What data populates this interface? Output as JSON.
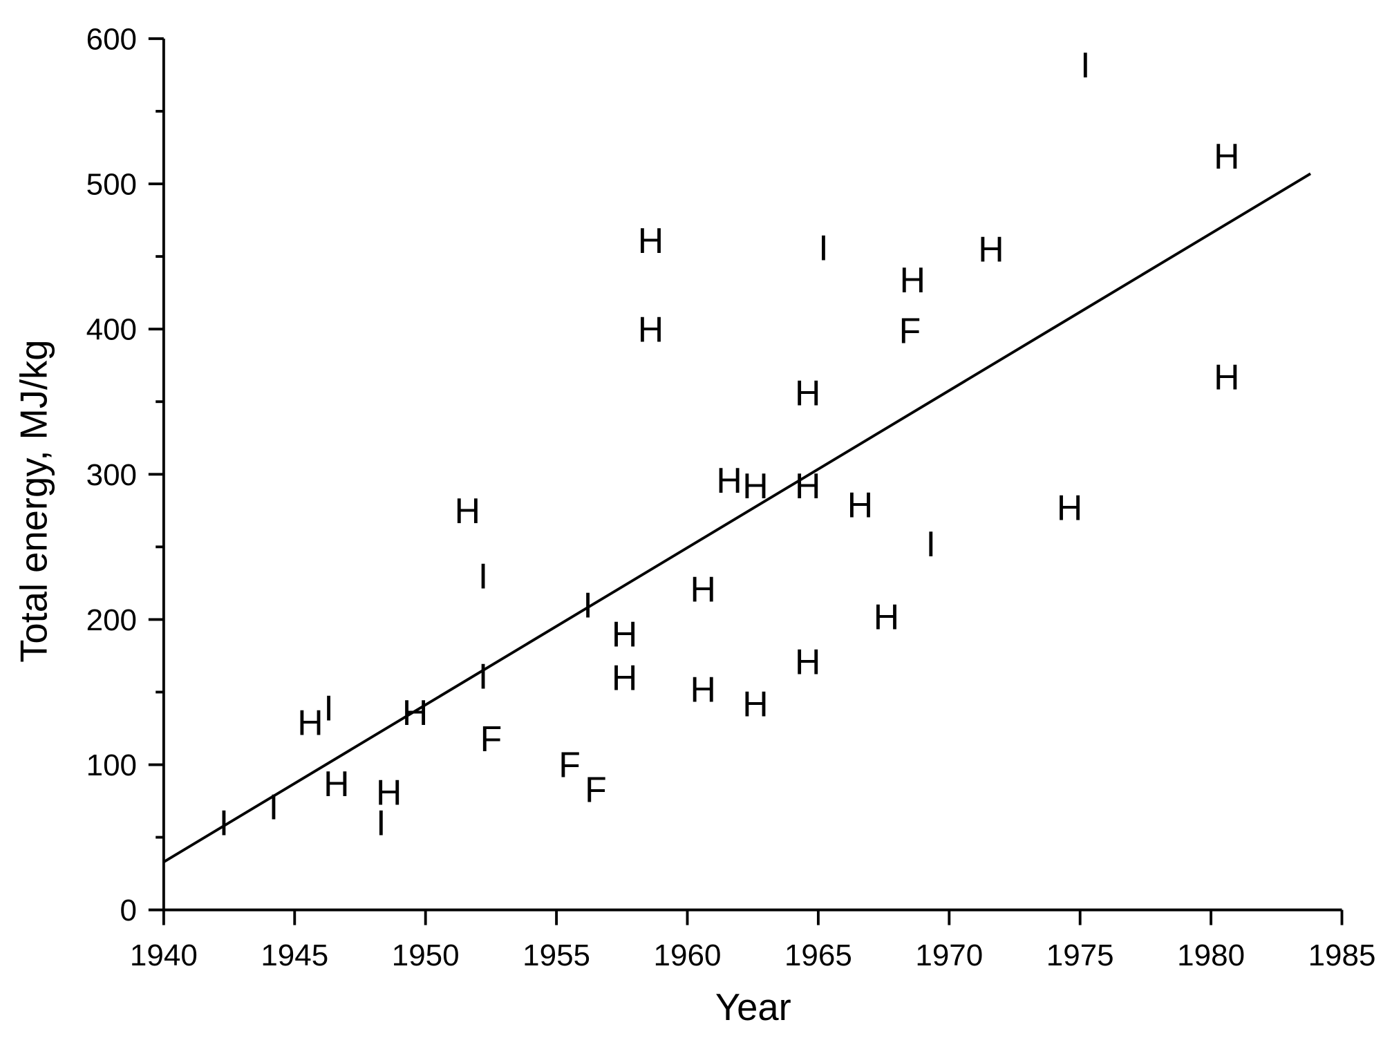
{
  "chart_data": {
    "type": "scatter",
    "xlabel": "Year",
    "ylabel": "Total energy, MJ/kg",
    "xlim": [
      1940,
      1985
    ],
    "xticks": [
      1940,
      1945,
      1950,
      1955,
      1960,
      1965,
      1970,
      1975,
      1980,
      1985
    ],
    "ylim": [
      0,
      600
    ],
    "yticks": [
      0,
      100,
      200,
      300,
      400,
      500,
      600
    ],
    "yminor_ticks": [
      50,
      150,
      250,
      350,
      450,
      550
    ],
    "color": "#000000",
    "series": [
      {
        "name": "I",
        "color": "#000000",
        "x": [
          1942.3,
          1944.2,
          1946.3,
          1948.3,
          1952.2,
          1952.2,
          1956.2,
          1965.2,
          1969.3,
          1975.2
        ],
        "values": [
          60,
          71,
          139,
          60,
          230,
          161,
          210,
          456,
          252,
          582
        ]
      },
      {
        "name": "H",
        "color": "#000000",
        "x": [
          1945.6,
          1946.6,
          1948.6,
          1949.6,
          1951.6,
          1958.6,
          1958.6,
          1957.6,
          1957.6,
          1960.6,
          1960.6,
          1961.6,
          1962.6,
          1962.6,
          1964.6,
          1964.6,
          1964.6,
          1966.6,
          1967.6,
          1968.6,
          1971.6,
          1974.6,
          1980.6,
          1980.6
        ],
        "values": [
          129,
          87,
          81,
          136,
          275,
          461,
          400,
          190,
          160,
          221,
          152,
          296,
          292,
          142,
          356,
          292,
          171,
          279,
          202,
          434,
          455,
          277,
          519,
          367
        ]
      },
      {
        "name": "F",
        "color": "#000000",
        "x": [
          1952.5,
          1955.5,
          1956.5,
          1968.5
        ],
        "values": [
          118,
          100,
          83,
          399
        ]
      }
    ],
    "trend_line": {
      "x": [
        1940,
        1983.8
      ],
      "values": [
        33,
        507
      ],
      "color": "#000000"
    }
  }
}
